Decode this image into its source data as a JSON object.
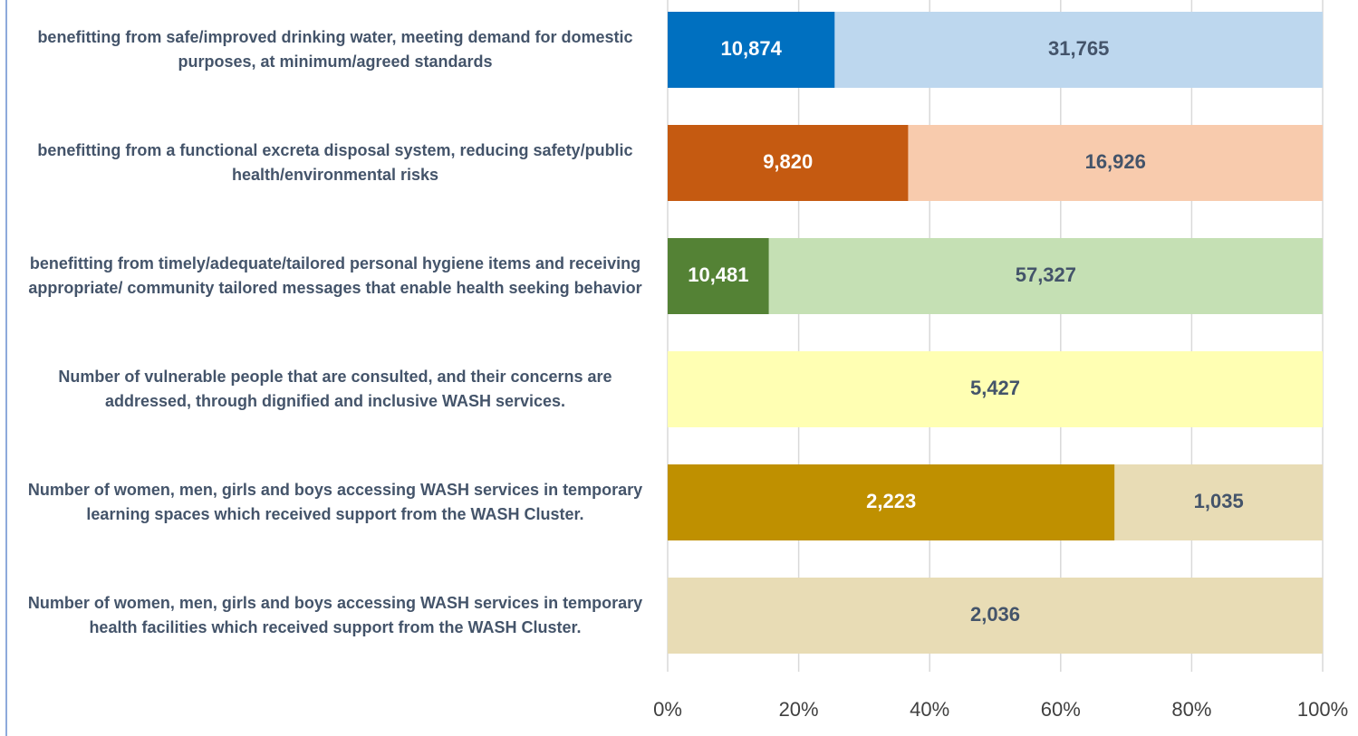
{
  "chart_data": {
    "type": "stacked_percent_barh",
    "categories": [
      "benefitting from safe/improved drinking water, meeting demand for domestic purposes, at minimum/agreed standards",
      "benefitting from a functional excreta disposal system, reducing safety/public health/environmental risks",
      "benefitting from timely/adequate/tailored personal hygiene items and receiving appropriate/ community tailored messages that enable health seeking behavior",
      "Number of vulnerable people that are consulted, and their concerns are addressed, through dignified and inclusive WASH services.",
      "Number of women, men, girls and boys accessing WASH services in temporary learning spaces which received support from the WASH Cluster.",
      "Number of women, men, girls and boys accessing WASH services in temporary health facilities which received support from the WASH Cluster."
    ],
    "series": [
      {
        "colors": [
          "#0070c0",
          "#c55a11",
          "#548235",
          null,
          "#bf9000",
          null
        ],
        "label_color": "#ffffff",
        "values": [
          10874,
          9820,
          10481,
          null,
          2223,
          null
        ],
        "value_labels": [
          "10,874",
          "9,820",
          "10,481",
          null,
          "2,223",
          null
        ]
      },
      {
        "colors": [
          "#bdd7ee",
          "#f8cbad",
          "#c5e0b4",
          "#ffffb3",
          "#e8dcb5",
          "#e8dcb5"
        ],
        "label_color": "#44546a",
        "values": [
          31765,
          16926,
          57327,
          5427,
          1035,
          2036
        ],
        "value_labels": [
          "31,765",
          "16,926",
          "57,327",
          "5,427",
          "1,035",
          "2,036"
        ]
      }
    ],
    "xlim": [
      0,
      100
    ],
    "xticks": [
      {
        "value": 0,
        "label": "0%"
      },
      {
        "value": 20,
        "label": "20%"
      },
      {
        "value": 40,
        "label": "40%"
      },
      {
        "value": 60,
        "label": "60%"
      },
      {
        "value": 80,
        "label": "80%"
      },
      {
        "value": 100,
        "label": "100%"
      }
    ],
    "grid": true
  }
}
